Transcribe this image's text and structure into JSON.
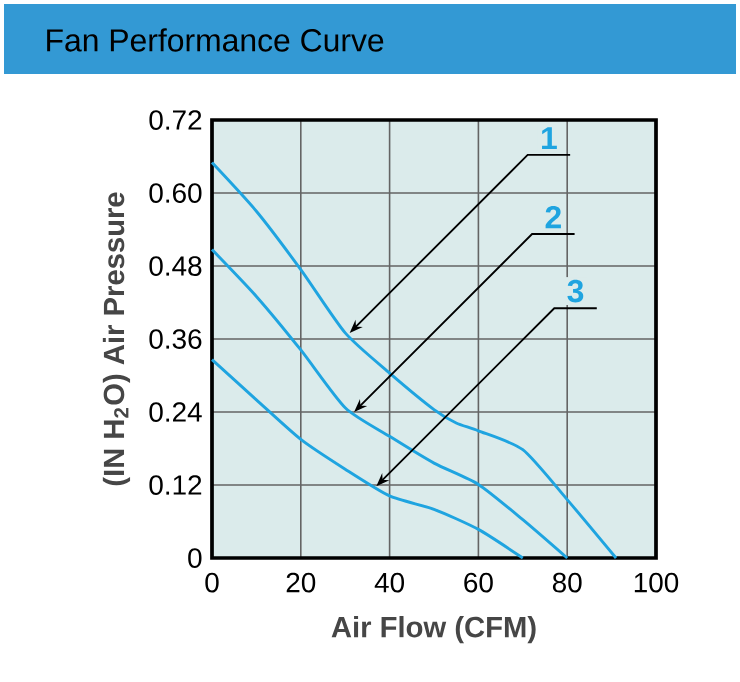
{
  "chart_data": {
    "type": "line",
    "title": "Fan Performance Curve",
    "xlabel": "Air Flow (CFM)",
    "ylabel": "(IN H$_{2}$O)  Air Pressure",
    "xlim": [
      0,
      100
    ],
    "xticks": [
      0,
      20,
      40,
      60,
      80,
      100
    ],
    "ylim": [
      0,
      0.72
    ],
    "yticks": [
      0,
      0.12,
      0.24,
      0.36,
      0.48,
      {
        "value": 0.6,
        "label": "0.60"
      },
      0.72
    ],
    "grid": true,
    "marker": "none",
    "line_style": "solid",
    "series": [
      {
        "color": "#1fa4e0",
        "x": [
          0,
          10,
          20,
          30,
          40,
          50,
          55,
          60,
          70,
          80,
          91
        ],
        "values": [
          0.65,
          0.57,
          0.474,
          0.37,
          0.304,
          0.244,
          0.222,
          0.209,
          0.178,
          0.096,
          0
        ]
      },
      {
        "color": "#1fa4e0",
        "x": [
          0,
          10,
          20,
          30,
          40,
          50,
          60,
          70,
          80
        ],
        "values": [
          0.507,
          0.43,
          0.342,
          0.247,
          0.2,
          0.156,
          0.121,
          0.063,
          0
        ]
      },
      {
        "color": "#1fa4e0",
        "x": [
          0,
          10,
          20,
          30,
          40,
          50,
          60,
          70
        ],
        "values": [
          0.326,
          0.26,
          0.195,
          0.146,
          0.102,
          0.08,
          0.047,
          0
        ]
      }
    ],
    "annotations": [
      {
        "text": "1",
        "x": 31,
        "y": 0.37
      },
      {
        "text": "2",
        "x": 32,
        "y": 0.24
      },
      {
        "text": "3",
        "x": 37,
        "y": 0.118
      }
    ]
  }
}
